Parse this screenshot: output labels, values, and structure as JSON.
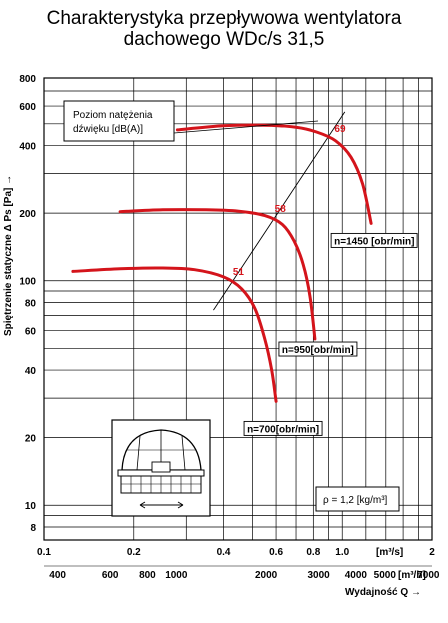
{
  "chart_data": {
    "type": "line",
    "title": "Charakterystyka przepływowa wentylatora",
    "subtitle": "dachowego WDc/s 31,5",
    "ylabel": "Spiętrzenie statyczne Δ Ps [Pa] →",
    "xlabel": "Wydajność Q →",
    "scale": "log-log",
    "xlim": [
      0.1,
      2
    ],
    "ylim": [
      7,
      800
    ],
    "x_unit_top": "[m³/s]",
    "x_unit_bottom": "[m³/h]",
    "x_ticks_top": [
      "0.1",
      "0.2",
      "0.4",
      "0.6",
      "0.8",
      "1.0",
      "2"
    ],
    "x_ticks_bottom": [
      "400",
      "600",
      "800",
      "1000",
      "2000",
      "3000",
      "4000",
      "5000",
      "7000"
    ],
    "y_ticks": [
      "8",
      "10",
      "20",
      "40",
      "60",
      "80",
      "100",
      "200",
      "400",
      "600",
      "800"
    ],
    "line_color": "#d4141b",
    "series": [
      {
        "name": "n=700[obr/min]",
        "x": [
          0.125,
          0.18,
          0.25,
          0.32,
          0.4,
          0.46,
          0.51,
          0.55,
          0.58,
          0.6
        ],
        "y": [
          110,
          113,
          114,
          112,
          104,
          92,
          75,
          55,
          40,
          29
        ]
      },
      {
        "name": "n=950[obr/min]",
        "x": [
          0.18,
          0.25,
          0.35,
          0.45,
          0.55,
          0.63,
          0.69,
          0.74,
          0.78,
          0.81
        ],
        "y": [
          203,
          207,
          207,
          204,
          195,
          178,
          150,
          118,
          85,
          55
        ]
      },
      {
        "name": "n=1450 [obr/min]",
        "x": [
          0.28,
          0.4,
          0.55,
          0.7,
          0.82,
          0.95,
          1.07,
          1.17,
          1.25
        ],
        "y": [
          470,
          490,
          493,
          483,
          460,
          420,
          355,
          270,
          180
        ]
      }
    ],
    "sound_levels": [
      {
        "label": "51",
        "x": 0.42,
        "y": 103
      },
      {
        "label": "58",
        "x": 0.58,
        "y": 196
      },
      {
        "label": "69",
        "x": 0.92,
        "y": 445
      }
    ],
    "system_line": {
      "from": {
        "x": 0.37,
        "y": 74
      },
      "to": {
        "x": 1.02,
        "y": 565
      }
    },
    "legend": {
      "sound_box": {
        "line1": "Poziom natężenia",
        "line2": "dźwięku [dB(A)]"
      },
      "density": "ρ = 1,2 [kg/m³]"
    },
    "grid": true
  }
}
